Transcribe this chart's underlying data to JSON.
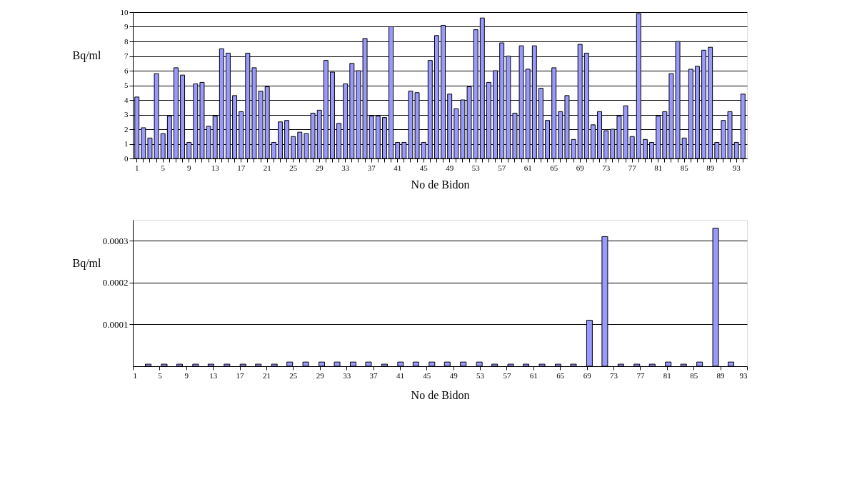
{
  "chart_data": [
    {
      "type": "bar",
      "xlabel": "No de Bidon",
      "ylabel": "Bq/ml",
      "categories": [
        "1",
        null,
        null,
        null,
        "5",
        null,
        null,
        null,
        "9",
        null,
        null,
        null,
        "13",
        null,
        null,
        null,
        "17",
        null,
        null,
        null,
        "21",
        null,
        null,
        null,
        "25",
        null,
        null,
        null,
        "29",
        null,
        null,
        null,
        "33",
        null,
        null,
        null,
        "37",
        null,
        null,
        null,
        "41",
        null,
        null,
        null,
        "45",
        null,
        null,
        null,
        "49",
        null,
        null,
        null,
        "53",
        null,
        null,
        null,
        "57",
        null,
        null,
        null,
        "61",
        null,
        null,
        null,
        "65",
        null,
        null,
        null,
        "69",
        null,
        null,
        null,
        "73",
        null,
        null,
        null,
        "77",
        null,
        null,
        null,
        "81",
        null,
        null,
        null,
        "85",
        null,
        null,
        null,
        "89",
        null,
        null,
        null,
        "93",
        null
      ],
      "series": [
        {
          "color": "#9999ff",
          "values": [
            4.2,
            2.1,
            1.4,
            5.8,
            1.7,
            2.9,
            6.2,
            5.7,
            1.1,
            5.1,
            5.2,
            2.2,
            2.9,
            7.5,
            7.2,
            4.3,
            3.2,
            7.2,
            6.2,
            4.6,
            4.9,
            1.1,
            2.5,
            2.6,
            1.5,
            1.8,
            1.7,
            3.1,
            3.3,
            6.7,
            5.9,
            2.4,
            5.1,
            6.5,
            6.0,
            8.2,
            2.9,
            2.9,
            2.8,
            9.0,
            1.1,
            1.1,
            4.6,
            4.5,
            1.1,
            6.7,
            8.4,
            9.1,
            4.4,
            3.4,
            4.0,
            4.9,
            8.8,
            9.6,
            5.2,
            6.0,
            7.9,
            7.0,
            3.1,
            7.7,
            6.1,
            7.7,
            4.8,
            2.6,
            6.2,
            3.2,
            4.3,
            1.3,
            7.8,
            7.2,
            2.3,
            3.2,
            1.9,
            2.0,
            2.9,
            3.6,
            1.5,
            9.9,
            1.3,
            1.1,
            2.9,
            3.2,
            5.8,
            8.0,
            1.4,
            6.1,
            6.3,
            7.4,
            7.6,
            1.1,
            2.6,
            3.2,
            1.1,
            4.4
          ]
        }
      ],
      "ylim": [
        0,
        10
      ],
      "yticks": [
        0,
        1,
        2,
        3,
        4,
        5,
        6,
        7,
        8,
        9,
        10
      ],
      "grid": "y"
    },
    {
      "type": "bar",
      "xlabel": "No de Bidon",
      "ylabel": "Bq/ml",
      "x": [
        3.3,
        5.7,
        8.0,
        10.4,
        12.7,
        15.1,
        17.5,
        19.8,
        22.2,
        24.5,
        26.9,
        29.3,
        31.6,
        34.0,
        36.3,
        38.7,
        41.1,
        43.4,
        45.8,
        48.1,
        50.5,
        52.9,
        55.2,
        57.6,
        59.9,
        62.3,
        64.7,
        67.0,
        69.4,
        71.7,
        74.1,
        76.5,
        78.8,
        81.2,
        83.5,
        85.9,
        88.3,
        90.6
      ],
      "series": [
        {
          "color": "#9999ff",
          "values": [
            5e-06,
            5e-06,
            5e-06,
            5e-06,
            5e-06,
            5e-06,
            5e-06,
            5e-06,
            5e-06,
            1e-05,
            1e-05,
            1e-05,
            1e-05,
            1e-05,
            1e-05,
            5e-06,
            1e-05,
            1e-05,
            1e-05,
            1e-05,
            1e-05,
            1e-05,
            5e-06,
            5e-06,
            5e-06,
            5e-06,
            5e-06,
            5e-06,
            0.00011,
            0.00031,
            5e-06,
            5e-06,
            5e-06,
            1e-05,
            5e-06,
            1e-05,
            0.00033,
            1e-05
          ]
        }
      ],
      "xlim": [
        1,
        93
      ],
      "xticks": [
        1,
        5,
        9,
        13,
        17,
        21,
        25,
        29,
        33,
        37,
        41,
        45,
        49,
        53,
        57,
        61,
        65,
        69,
        73,
        77,
        81,
        85,
        89,
        93
      ],
      "ylim": [
        0,
        0.00035
      ],
      "yticks": [
        0.0001,
        0.0002,
        0.0003
      ],
      "grid": "y"
    }
  ]
}
